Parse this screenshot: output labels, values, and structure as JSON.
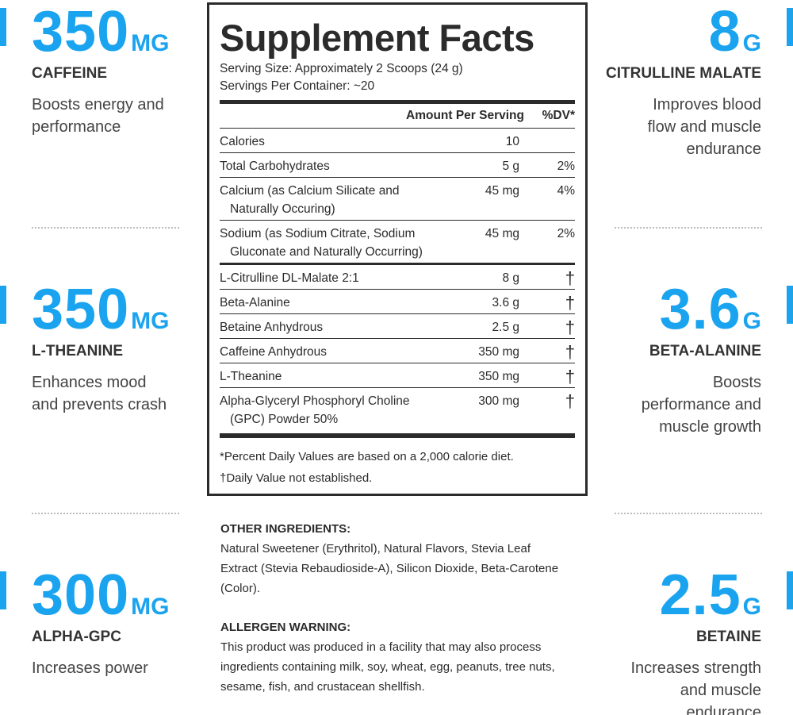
{
  "left_features": [
    {
      "amount": "350",
      "unit": "MG",
      "name": "CAFFEINE",
      "description": "Boosts energy and performance"
    },
    {
      "amount": "350",
      "unit": "MG",
      "name": "L-THEANINE",
      "description": "Enhances mood and prevents crash"
    },
    {
      "amount": "300",
      "unit": "MG",
      "name": "ALPHA-GPC",
      "description": "Increases power"
    }
  ],
  "right_features": [
    {
      "amount": "8",
      "unit": "G",
      "name": "CITRULLINE MALATE",
      "description": "Improves blood flow and muscle endurance"
    },
    {
      "amount": "3.6",
      "unit": "G",
      "name": "BETA-ALANINE",
      "description": "Boosts performance and muscle growth"
    },
    {
      "amount": "2.5",
      "unit": "G",
      "name": "BETAINE",
      "description": "Increases strength and muscle endurance"
    }
  ],
  "supplement_facts": {
    "title": "Supplement Facts",
    "serving_size": "Serving Size: Approximately 2 Scoops (24 g)",
    "servings_per_container": "Servings Per Container: ~20",
    "header": {
      "amount": "Amount Per Serving",
      "dv": "%DV*"
    },
    "rows": [
      [
        "Calories",
        "10",
        ""
      ],
      [
        "Total Carbohydrates",
        "5 g",
        "2%"
      ],
      [
        "Calcium (as Calcium Silicate and Naturally Occuring)",
        "45 mg",
        "4%"
      ],
      [
        "Sodium (as Sodium Citrate, Sodium Gluconate and Naturally Occurring)",
        "45 mg",
        "2%"
      ],
      [
        "L-Citrulline DL-Malate 2:1",
        "8 g",
        "†"
      ],
      [
        "Beta-Alanine",
        "3.6 g",
        "†"
      ],
      [
        "Betaine Anhydrous",
        "2.5 g",
        "†"
      ],
      [
        "Caffeine Anhydrous",
        "350 mg",
        "†"
      ],
      [
        "L-Theanine",
        "350 mg",
        "†"
      ],
      [
        "Alpha-Glyceryl Phosphoryl Choline (GPC) Powder 50%",
        "300 mg",
        "†"
      ]
    ],
    "footnotes": [
      "*Percent Daily Values are based on a 2,000 calorie diet.",
      "†Daily Value not established."
    ]
  },
  "other_ingredients": {
    "heading": "OTHER INGREDIENTS:",
    "text": "Natural Sweetener (Erythritol), Natural Flavors, Stevia Leaf Extract (Stevia Rebaudioside-A), Silicon Dioxide, Beta-Carotene (Color)."
  },
  "allergen_warning": {
    "heading": "ALLERGEN WARNING:",
    "text": "This product was produced in a facility that may also process ingredients containing milk, soy, wheat, egg, peanuts, tree nuts, sesame, fish, and crustacean shellfish."
  }
}
